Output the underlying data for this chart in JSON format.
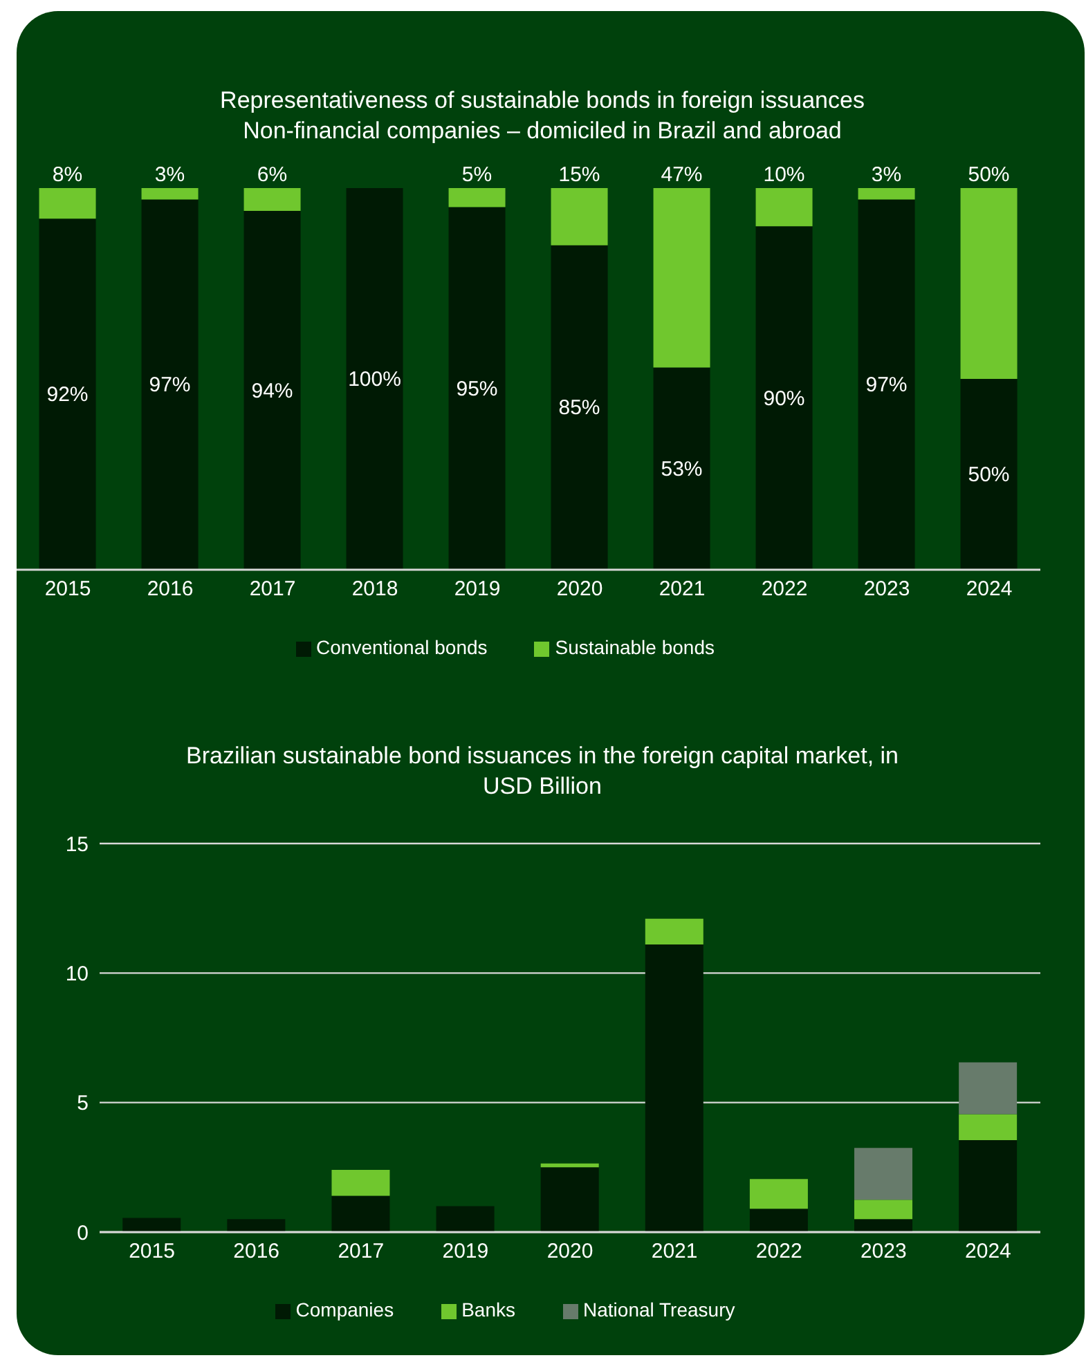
{
  "chart_data": [
    {
      "type": "bar",
      "title": "Representativeness of sustainable bonds in foreign issuances",
      "subtitle": "Non-financial companies – domiciled in Brazil and abroad",
      "categories": [
        "2015",
        "2016",
        "2017",
        "2018",
        "2019",
        "2020",
        "2021",
        "2022",
        "2023",
        "2024"
      ],
      "stacked": true,
      "legend": "bottom",
      "series": [
        {
          "name": "Conventional bonds",
          "color": "#001a04",
          "values": [
            92,
            97,
            94,
            100,
            95,
            85,
            53,
            90,
            97,
            50
          ],
          "value_labels": [
            "92%",
            "97%",
            "94%",
            "100%",
            "95%",
            "85%",
            "53%",
            "90%",
            "97%",
            "50%"
          ]
        },
        {
          "name": "Sustainable bonds",
          "color": "#70c72e",
          "values": [
            8,
            3,
            6,
            null,
            5,
            15,
            47,
            10,
            3,
            50
          ],
          "value_labels": [
            "8%",
            "3%",
            "6%",
            null,
            "5%",
            "15%",
            "47%",
            "10%",
            "3%",
            "50%"
          ]
        }
      ]
    },
    {
      "type": "bar",
      "title": "Brazilian sustainable bond issuances in the foreign capital market, in USD Billion",
      "categories": [
        "2015",
        "2016",
        "2017",
        "2019",
        "2020",
        "2021",
        "2022",
        "2023",
        "2024"
      ],
      "stacked": true,
      "legend": "bottom",
      "grid": "y",
      "ylim": [
        0,
        15
      ],
      "yticks": [
        0,
        5,
        10,
        15
      ],
      "series": [
        {
          "name": "Companies",
          "color": "#001a04",
          "values": [
            0.55,
            0.5,
            1.4,
            1.0,
            2.5,
            11.1,
            0.9,
            0.5,
            3.55
          ]
        },
        {
          "name": "Banks",
          "color": "#70c72e",
          "values": [
            null,
            null,
            1.0,
            null,
            0.15,
            1.0,
            1.15,
            0.75,
            1.0
          ]
        },
        {
          "name": "National Treasury",
          "color": "#677b6b",
          "values": [
            null,
            null,
            null,
            null,
            null,
            null,
            null,
            2.0,
            2.0
          ]
        }
      ]
    }
  ]
}
